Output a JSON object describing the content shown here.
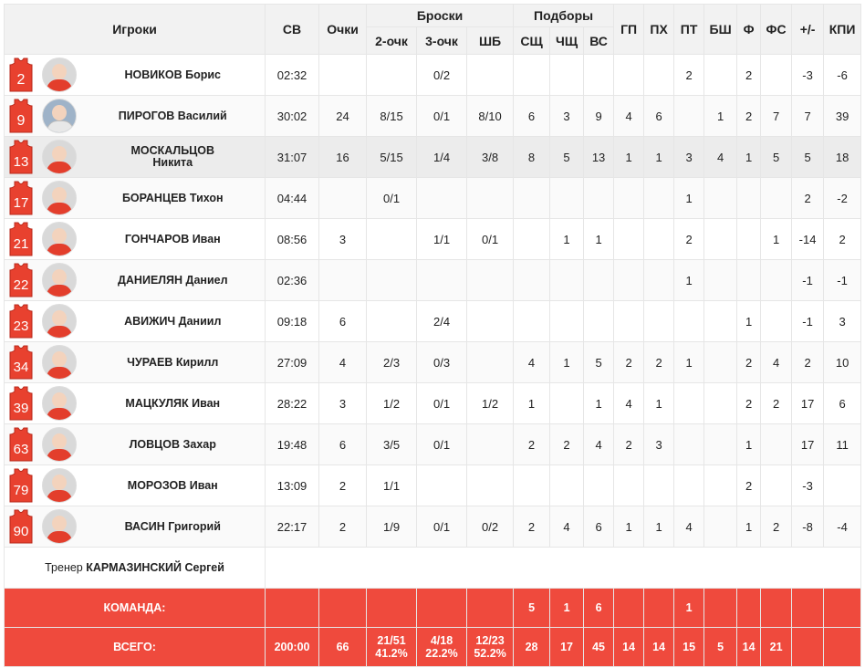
{
  "header": {
    "players": "Игроки",
    "minutes": "СВ",
    "points": "Очки",
    "shots": "Броски",
    "two_pt": "2-очк",
    "three_pt": "3-очк",
    "ft": "ШБ",
    "rebounds": "Подборы",
    "def_reb": "СЩ",
    "off_reb": "ЧЩ",
    "total_reb": "ВС",
    "assists": "ГП",
    "steals": "ПХ",
    "turnovers": "ПТ",
    "blocks": "БШ",
    "fouls": "Ф",
    "fouls_drawn": "ФС",
    "plus_minus": "+/-",
    "efficiency": "КПИ"
  },
  "jersey_color": "#e8412f",
  "players": [
    {
      "num": "2",
      "name": "НОВИКОВ Борис",
      "min": "02:32",
      "pts": "",
      "two": "",
      "three": "0/2",
      "ft": "",
      "dr": "",
      "or": "",
      "tr": "",
      "ast": "",
      "stl": "",
      "to": "2",
      "blk": "",
      "pf": "2",
      "fd": "",
      "pm": "-3",
      "eff": "-6"
    },
    {
      "num": "9",
      "name": "ПИРОГОВ Василий",
      "min": "30:02",
      "pts": "24",
      "two": "8/15",
      "three": "0/1",
      "ft": "8/10",
      "dr": "6",
      "or": "3",
      "tr": "9",
      "ast": "4",
      "stl": "6",
      "to": "",
      "blk": "1",
      "pf": "2",
      "fd": "7",
      "pm": "7",
      "eff": "39"
    },
    {
      "num": "13",
      "name": "МОСКАЛЬЦОВ Никита",
      "min": "31:07",
      "pts": "16",
      "two": "5/15",
      "three": "1/4",
      "ft": "3/8",
      "dr": "8",
      "or": "5",
      "tr": "13",
      "ast": "1",
      "stl": "1",
      "to": "3",
      "blk": "4",
      "pf": "1",
      "fd": "5",
      "pm": "5",
      "eff": "18"
    },
    {
      "num": "17",
      "name": "БОРАНЦЕВ Тихон",
      "min": "04:44",
      "pts": "",
      "two": "0/1",
      "three": "",
      "ft": "",
      "dr": "",
      "or": "",
      "tr": "",
      "ast": "",
      "stl": "",
      "to": "1",
      "blk": "",
      "pf": "",
      "fd": "",
      "pm": "2",
      "eff": "-2"
    },
    {
      "num": "21",
      "name": "ГОНЧАРОВ Иван",
      "min": "08:56",
      "pts": "3",
      "two": "",
      "three": "1/1",
      "ft": "0/1",
      "dr": "",
      "or": "1",
      "tr": "1",
      "ast": "",
      "stl": "",
      "to": "2",
      "blk": "",
      "pf": "",
      "fd": "1",
      "pm": "-14",
      "eff": "2"
    },
    {
      "num": "22",
      "name": "ДАНИЕЛЯН Даниел",
      "min": "02:36",
      "pts": "",
      "two": "",
      "three": "",
      "ft": "",
      "dr": "",
      "or": "",
      "tr": "",
      "ast": "",
      "stl": "",
      "to": "1",
      "blk": "",
      "pf": "",
      "fd": "",
      "pm": "-1",
      "eff": "-1"
    },
    {
      "num": "23",
      "name": "АВИЖИЧ Даниил",
      "min": "09:18",
      "pts": "6",
      "two": "",
      "three": "2/4",
      "ft": "",
      "dr": "",
      "or": "",
      "tr": "",
      "ast": "",
      "stl": "",
      "to": "",
      "blk": "",
      "pf": "1",
      "fd": "",
      "pm": "-1",
      "eff": "3"
    },
    {
      "num": "34",
      "name": "ЧУРАЕВ Кирилл",
      "min": "27:09",
      "pts": "4",
      "two": "2/3",
      "three": "0/3",
      "ft": "",
      "dr": "4",
      "or": "1",
      "tr": "5",
      "ast": "2",
      "stl": "2",
      "to": "1",
      "blk": "",
      "pf": "2",
      "fd": "4",
      "pm": "2",
      "eff": "10"
    },
    {
      "num": "39",
      "name": "МАЦКУЛЯК Иван",
      "min": "28:22",
      "pts": "3",
      "two": "1/2",
      "three": "0/1",
      "ft": "1/2",
      "dr": "1",
      "or": "",
      "tr": "1",
      "ast": "4",
      "stl": "1",
      "to": "",
      "blk": "",
      "pf": "2",
      "fd": "2",
      "pm": "17",
      "eff": "6"
    },
    {
      "num": "63",
      "name": "ЛОВЦОВ Захар",
      "min": "19:48",
      "pts": "6",
      "two": "3/5",
      "three": "0/1",
      "ft": "",
      "dr": "2",
      "or": "2",
      "tr": "4",
      "ast": "2",
      "stl": "3",
      "to": "",
      "blk": "",
      "pf": "1",
      "fd": "",
      "pm": "17",
      "eff": "11"
    },
    {
      "num": "79",
      "name": "МОРОЗОВ Иван",
      "min": "13:09",
      "pts": "2",
      "two": "1/1",
      "three": "",
      "ft": "",
      "dr": "",
      "or": "",
      "tr": "",
      "ast": "",
      "stl": "",
      "to": "",
      "blk": "",
      "pf": "2",
      "fd": "",
      "pm": "-3",
      "eff": ""
    },
    {
      "num": "90",
      "name": "ВАСИН Григорий",
      "min": "22:17",
      "pts": "2",
      "two": "1/9",
      "three": "0/1",
      "ft": "0/2",
      "dr": "2",
      "or": "4",
      "tr": "6",
      "ast": "1",
      "stl": "1",
      "to": "4",
      "blk": "",
      "pf": "1",
      "fd": "2",
      "pm": "-8",
      "eff": "-4"
    }
  ],
  "coach": {
    "label": "Тренер",
    "name": "КАРМАЗИНСКИЙ Сергей"
  },
  "team": {
    "label": "КОМАНДА:",
    "min": "",
    "pts": "",
    "two": "",
    "three": "",
    "ft": "",
    "dr": "5",
    "or": "1",
    "tr": "6",
    "ast": "",
    "stl": "",
    "to": "1",
    "blk": "",
    "pf": "",
    "fd": "",
    "pm": "",
    "eff": ""
  },
  "total": {
    "label": "ВСЕГО:",
    "min": "200:00",
    "pts": "66",
    "two": "21/51",
    "two_pct": "41.2%",
    "three": "4/18",
    "three_pct": "22.2%",
    "ft": "12/23",
    "ft_pct": "52.2%",
    "dr": "28",
    "or": "17",
    "tr": "45",
    "ast": "14",
    "stl": "14",
    "to": "15",
    "blk": "5",
    "pf": "14",
    "fd": "21",
    "pm": "",
    "eff": ""
  }
}
